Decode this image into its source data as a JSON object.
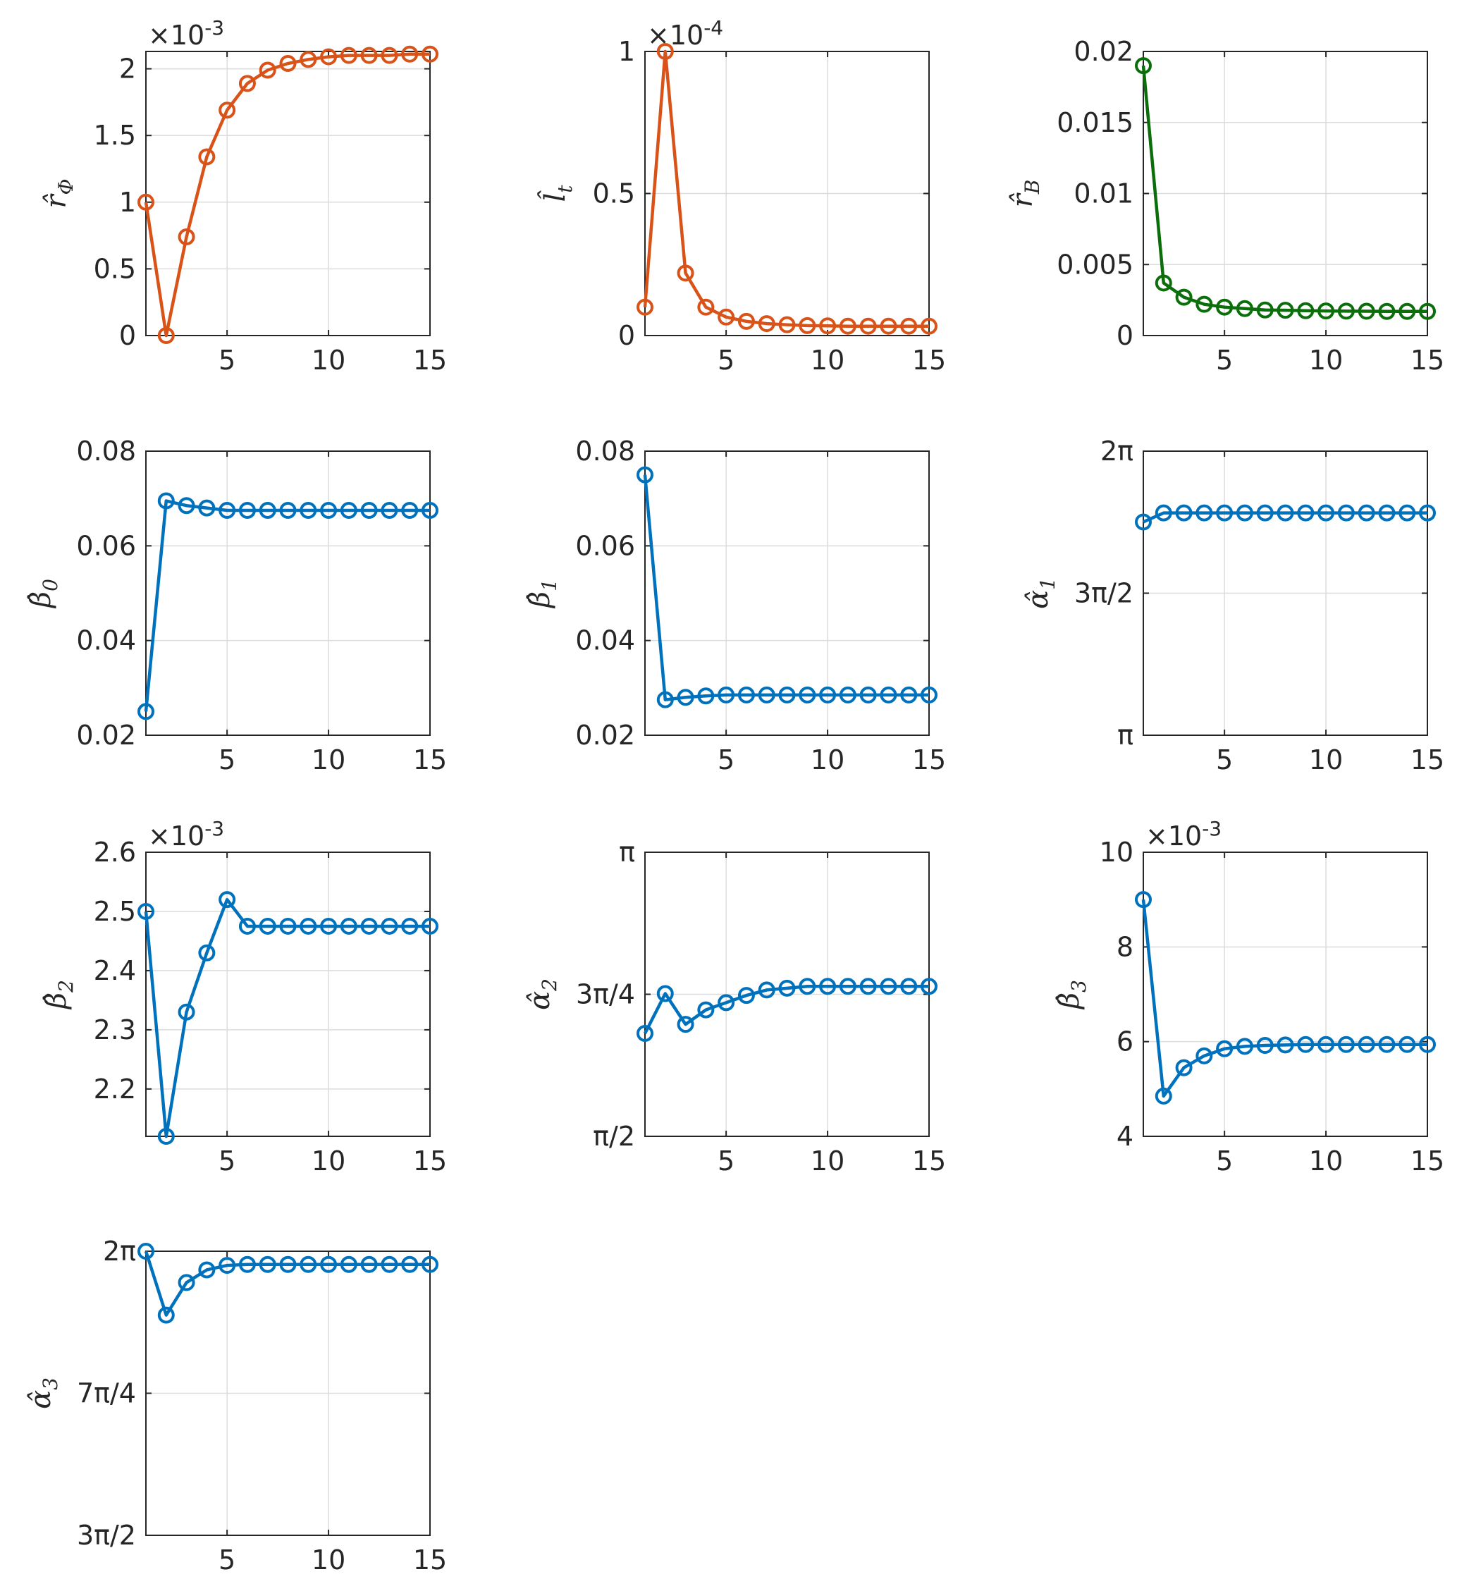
{
  "chart_data": [
    {
      "type": "line",
      "ylabel": {
        "main": "r̂",
        "sub": "Φ"
      },
      "color": "#D95319",
      "x": [
        1,
        2,
        3,
        4,
        5,
        6,
        7,
        8,
        9,
        10,
        11,
        12,
        13,
        14,
        15
      ],
      "values": [
        1.0,
        0.0,
        0.74,
        1.34,
        1.69,
        1.89,
        1.99,
        2.04,
        2.07,
        2.09,
        2.1,
        2.1,
        2.1,
        2.11,
        2.11
      ],
      "xlim": [
        1,
        15
      ],
      "ylim": [
        0,
        2.13
      ],
      "xticks": [
        5,
        10,
        15
      ],
      "xtick_labels": [
        "5",
        "10",
        "15"
      ],
      "yticks": [
        0,
        0.5,
        1,
        1.5,
        2
      ],
      "ytick_labels": [
        "0",
        "0.5",
        "1",
        "1.5",
        "2"
      ],
      "multiplier": {
        "base": "×10",
        "exp": "-3"
      }
    },
    {
      "type": "line",
      "ylabel": {
        "main": "l̂",
        "sub": "t"
      },
      "color": "#D95319",
      "x": [
        1,
        2,
        3,
        4,
        5,
        6,
        7,
        8,
        9,
        10,
        11,
        12,
        13,
        14,
        15
      ],
      "values": [
        0.1,
        1.0,
        0.22,
        0.1,
        0.065,
        0.05,
        0.042,
        0.038,
        0.035,
        0.034,
        0.033,
        0.033,
        0.033,
        0.033,
        0.033
      ],
      "xlim": [
        1,
        15
      ],
      "ylim": [
        0,
        1.0
      ],
      "xticks": [
        5,
        10,
        15
      ],
      "xtick_labels": [
        "5",
        "10",
        "15"
      ],
      "yticks": [
        0,
        0.5,
        1
      ],
      "ytick_labels": [
        "0",
        "0.5",
        "1"
      ],
      "multiplier": {
        "base": "×10",
        "exp": "-4"
      }
    },
    {
      "type": "line",
      "ylabel": {
        "main": "r̂",
        "sub": "B"
      },
      "color": "#0B6E0B",
      "x": [
        1,
        2,
        3,
        4,
        5,
        6,
        7,
        8,
        9,
        10,
        11,
        12,
        13,
        14,
        15
      ],
      "values": [
        0.019,
        0.0037,
        0.0027,
        0.0022,
        0.002,
        0.0019,
        0.0018,
        0.00178,
        0.00175,
        0.00173,
        0.00172,
        0.00171,
        0.0017,
        0.0017,
        0.0017
      ],
      "xlim": [
        1,
        15
      ],
      "ylim": [
        0,
        0.02
      ],
      "xticks": [
        5,
        10,
        15
      ],
      "xtick_labels": [
        "5",
        "10",
        "15"
      ],
      "yticks": [
        0,
        0.005,
        0.01,
        0.015,
        0.02
      ],
      "ytick_labels": [
        "0",
        "0.005",
        "0.01",
        "0.015",
        "0.02"
      ]
    },
    {
      "type": "line",
      "ylabel": {
        "main": "β̂",
        "sub": "0"
      },
      "color": "#0072BD",
      "x": [
        1,
        2,
        3,
        4,
        5,
        6,
        7,
        8,
        9,
        10,
        11,
        12,
        13,
        14,
        15
      ],
      "values": [
        0.025,
        0.0695,
        0.0685,
        0.068,
        0.0675,
        0.0675,
        0.0675,
        0.0675,
        0.0675,
        0.0675,
        0.0675,
        0.0675,
        0.0675,
        0.0675,
        0.0675
      ],
      "xlim": [
        1,
        15
      ],
      "ylim": [
        0.02,
        0.08
      ],
      "xticks": [
        5,
        10,
        15
      ],
      "xtick_labels": [
        "5",
        "10",
        "15"
      ],
      "yticks": [
        0.02,
        0.04,
        0.06,
        0.08
      ],
      "ytick_labels": [
        "0.02",
        "0.04",
        "0.06",
        "0.08"
      ]
    },
    {
      "type": "line",
      "ylabel": {
        "main": "β̂",
        "sub": "1"
      },
      "color": "#0072BD",
      "x": [
        1,
        2,
        3,
        4,
        5,
        6,
        7,
        8,
        9,
        10,
        11,
        12,
        13,
        14,
        15
      ],
      "values": [
        0.075,
        0.0275,
        0.028,
        0.0283,
        0.0285,
        0.0285,
        0.0285,
        0.0285,
        0.0285,
        0.0285,
        0.0285,
        0.0285,
        0.0285,
        0.0285,
        0.0285
      ],
      "xlim": [
        1,
        15
      ],
      "ylim": [
        0.02,
        0.08
      ],
      "xticks": [
        5,
        10,
        15
      ],
      "xtick_labels": [
        "5",
        "10",
        "15"
      ],
      "yticks": [
        0.02,
        0.04,
        0.06,
        0.08
      ],
      "ytick_labels": [
        "0.02",
        "0.04",
        "0.06",
        "0.08"
      ]
    },
    {
      "type": "line",
      "ylabel": {
        "main": "α̂",
        "sub": "1"
      },
      "color": "#0072BD",
      "x": [
        1,
        2,
        3,
        4,
        5,
        6,
        7,
        8,
        9,
        10,
        11,
        12,
        13,
        14,
        15
      ],
      "values": [
        5.5,
        5.6,
        5.6,
        5.6,
        5.6,
        5.6,
        5.6,
        5.6,
        5.6,
        5.6,
        5.6,
        5.6,
        5.6,
        5.6,
        5.6
      ],
      "xlim": [
        1,
        15
      ],
      "ylim": [
        3.1416,
        6.2832
      ],
      "xticks": [
        5,
        10,
        15
      ],
      "xtick_labels": [
        "5",
        "10",
        "15"
      ],
      "yticks": [
        3.1416,
        4.7124,
        6.2832
      ],
      "ytick_labels": [
        "π",
        "3π/2",
        "2π"
      ]
    },
    {
      "type": "line",
      "ylabel": {
        "main": "β̂",
        "sub": "2"
      },
      "color": "#0072BD",
      "x": [
        1,
        2,
        3,
        4,
        5,
        6,
        7,
        8,
        9,
        10,
        11,
        12,
        13,
        14,
        15
      ],
      "values": [
        2.5,
        2.12,
        2.33,
        2.43,
        2.52,
        2.475,
        2.475,
        2.475,
        2.475,
        2.475,
        2.475,
        2.475,
        2.475,
        2.475,
        2.475
      ],
      "xlim": [
        1,
        15
      ],
      "ylim": [
        2.12,
        2.6
      ],
      "xticks": [
        5,
        10,
        15
      ],
      "xtick_labels": [
        "5",
        "10",
        "15"
      ],
      "yticks": [
        2.2,
        2.3,
        2.4,
        2.5,
        2.6
      ],
      "ytick_labels": [
        "2.2",
        "2.3",
        "2.4",
        "2.5",
        "2.6"
      ],
      "multiplier": {
        "base": "×10",
        "exp": "-3"
      }
    },
    {
      "type": "line",
      "ylabel": {
        "main": "α̂",
        "sub": "2"
      },
      "color": "#0072BD",
      "x": [
        1,
        2,
        3,
        4,
        5,
        6,
        7,
        8,
        9,
        10,
        11,
        12,
        13,
        14,
        15
      ],
      "values": [
        2.14,
        2.36,
        2.19,
        2.27,
        2.31,
        2.35,
        2.38,
        2.39,
        2.4,
        2.4,
        2.4,
        2.4,
        2.4,
        2.4,
        2.4
      ],
      "xlim": [
        1,
        15
      ],
      "ylim": [
        1.5708,
        3.1416
      ],
      "xticks": [
        5,
        10,
        15
      ],
      "xtick_labels": [
        "5",
        "10",
        "15"
      ],
      "yticks": [
        1.5708,
        2.3562,
        3.1416
      ],
      "ytick_labels": [
        "π/2",
        "3π/4",
        "π"
      ]
    },
    {
      "type": "line",
      "ylabel": {
        "main": "β̂",
        "sub": "3"
      },
      "color": "#0072BD",
      "x": [
        1,
        2,
        3,
        4,
        5,
        6,
        7,
        8,
        9,
        10,
        11,
        12,
        13,
        14,
        15
      ],
      "values": [
        9.0,
        4.85,
        5.45,
        5.7,
        5.85,
        5.9,
        5.92,
        5.93,
        5.94,
        5.94,
        5.94,
        5.94,
        5.94,
        5.94,
        5.94
      ],
      "xlim": [
        1,
        15
      ],
      "ylim": [
        4,
        10
      ],
      "xticks": [
        5,
        10,
        15
      ],
      "xtick_labels": [
        "5",
        "10",
        "15"
      ],
      "yticks": [
        4,
        6,
        8,
        10
      ],
      "ytick_labels": [
        "4",
        "6",
        "8",
        "10"
      ],
      "multiplier": {
        "base": "×10",
        "exp": "-3"
      }
    },
    {
      "type": "line",
      "ylabel": {
        "main": "α̂",
        "sub": "3"
      },
      "color": "#0072BD",
      "x": [
        1,
        2,
        3,
        4,
        5,
        6,
        7,
        8,
        9,
        10,
        11,
        12,
        13,
        14,
        15
      ],
      "values": [
        6.283,
        5.93,
        6.11,
        6.18,
        6.205,
        6.21,
        6.21,
        6.21,
        6.21,
        6.21,
        6.21,
        6.21,
        6.21,
        6.21,
        6.21
      ],
      "xlim": [
        1,
        15
      ],
      "ylim": [
        4.7124,
        6.2832
      ],
      "xticks": [
        5,
        10,
        15
      ],
      "xtick_labels": [
        "5",
        "10",
        "15"
      ],
      "yticks": [
        4.7124,
        5.4978,
        6.2832
      ],
      "ytick_labels": [
        "3π/2",
        "7π/4",
        "2π"
      ]
    }
  ]
}
